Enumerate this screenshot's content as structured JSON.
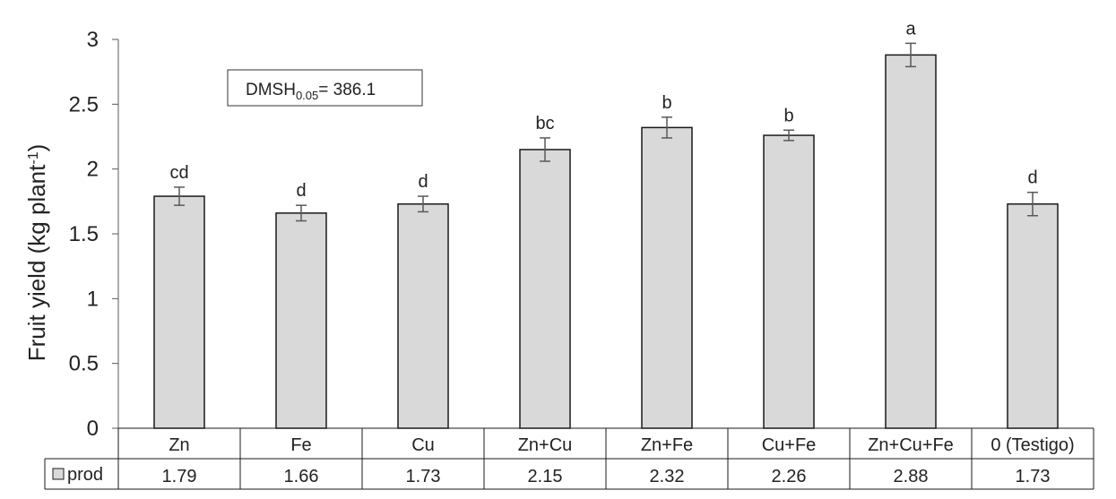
{
  "chart_data": {
    "type": "bar",
    "ylabel": "Fruit yield (kg plant",
    "ylabel_sup": "-1",
    "ylabel_end": ")",
    "ylim": [
      0,
      3
    ],
    "yticks": [
      "0",
      "0.5",
      "1",
      "1.5",
      "2",
      "2.5",
      "3"
    ],
    "grid": false,
    "categories": [
      "Zn",
      "Fe",
      "Cu",
      "Zn+Cu",
      "Zn+Fe",
      "Cu+Fe",
      "Zn+Cu+Fe",
      "0 (Testigo)"
    ],
    "series": [
      {
        "name": "prod",
        "values": [
          1.79,
          1.66,
          1.73,
          2.15,
          2.32,
          2.26,
          2.88,
          1.73
        ],
        "value_labels": [
          "1.79",
          "1.66",
          "1.73",
          "2.15",
          "2.32",
          "2.26",
          "2.88",
          "1.73"
        ],
        "errors": [
          0.07,
          0.06,
          0.06,
          0.09,
          0.08,
          0.04,
          0.09,
          0.09
        ],
        "letters": [
          "cd",
          "d",
          "d",
          "bc",
          "b",
          "b",
          "a",
          "d"
        ],
        "color": "#d9d9d9"
      }
    ],
    "annotation": {
      "prefix": "DMSH",
      "subscript": "0.05",
      "suffix": "= 386.1"
    },
    "data_table": true
  }
}
